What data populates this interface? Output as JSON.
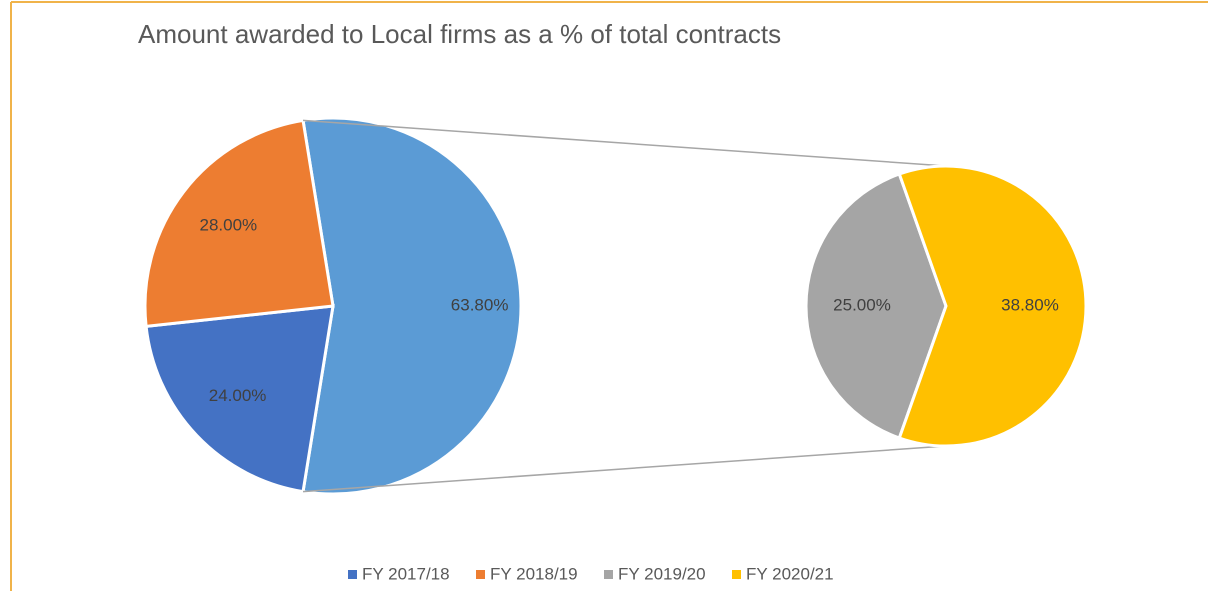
{
  "chart_data": {
    "type": "pie",
    "title": "Amount awarded to Local firms as a % of total contracts",
    "categories": [
      "FY 2017/18",
      "FY 2018/19",
      "FY 2019/20",
      "FY 2020/21"
    ],
    "values": [
      24,
      28,
      25,
      38.8
    ],
    "value_labels": [
      "24.00%",
      "28.00%",
      "25.00%",
      "38.80%"
    ],
    "colors": [
      "#4472c4",
      "#ed7d31",
      "#a5a5a5",
      "#ffc000"
    ],
    "other_value": 63.8,
    "other_label": "63.80%",
    "other_color": "#5b9bd5",
    "secondary_count": 2,
    "legend": "bottom"
  }
}
